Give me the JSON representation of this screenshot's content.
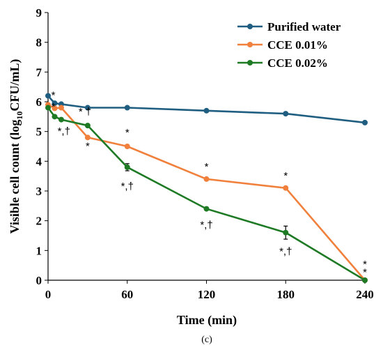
{
  "chart_data": {
    "type": "line",
    "xlabel": "Time (min)",
    "ylabel": "Visible cell count (log",
    "ylabel_sub": "10",
    "ylabel_suffix": "CFU/mL)",
    "caption": "(c)",
    "xlim": [
      0,
      240
    ],
    "ylim": [
      0,
      9
    ],
    "xticks": [
      0,
      60,
      120,
      180,
      240
    ],
    "yticks": [
      0,
      1,
      2,
      3,
      4,
      5,
      6,
      7,
      8,
      9
    ],
    "legend_position": "top-right",
    "series": [
      {
        "name": "Purified water",
        "color": "#1f5e80",
        "x": [
          0,
          5,
          10,
          30,
          60,
          120,
          180,
          240
        ],
        "y": [
          6.2,
          5.95,
          5.92,
          5.8,
          5.8,
          5.7,
          5.6,
          5.3
        ]
      },
      {
        "name": "CCE 0.01%",
        "color": "#f0803c",
        "x": [
          0,
          5,
          10,
          30,
          60,
          120,
          180,
          240
        ],
        "y": [
          5.9,
          5.78,
          5.8,
          4.8,
          4.5,
          3.4,
          3.1,
          0.0
        ]
      },
      {
        "name": "CCE 0.02%",
        "color": "#1e7a24",
        "x": [
          0,
          5,
          10,
          30,
          60,
          120,
          180,
          240
        ],
        "y": [
          5.8,
          5.5,
          5.4,
          5.2,
          3.8,
          2.4,
          1.6,
          0.0
        ],
        "error": [
          0,
          0,
          0,
          0,
          0.12,
          0,
          0.22,
          0
        ]
      }
    ],
    "annotations": [
      {
        "text": "*",
        "x": 4,
        "y": 6.1
      },
      {
        "text": "*",
        "x": 4,
        "y": 5.72
      },
      {
        "text": "*,†",
        "x": 12,
        "y": 4.9
      },
      {
        "text": "*",
        "x": 30,
        "y": 4.4
      },
      {
        "text": "* †",
        "x": 28,
        "y": 5.55
      },
      {
        "text": "*",
        "x": 60,
        "y": 4.85
      },
      {
        "text": "*,†",
        "x": 60,
        "y": 3.05
      },
      {
        "text": "*",
        "x": 120,
        "y": 3.7
      },
      {
        "text": "*,†",
        "x": 120,
        "y": 1.75
      },
      {
        "text": "*",
        "x": 180,
        "y": 3.4
      },
      {
        "text": "*,†",
        "x": 180,
        "y": 0.85
      },
      {
        "text": "*",
        "x": 240,
        "y": 0.42
      },
      {
        "text": "*",
        "x": 240,
        "y": 0.15
      }
    ]
  }
}
